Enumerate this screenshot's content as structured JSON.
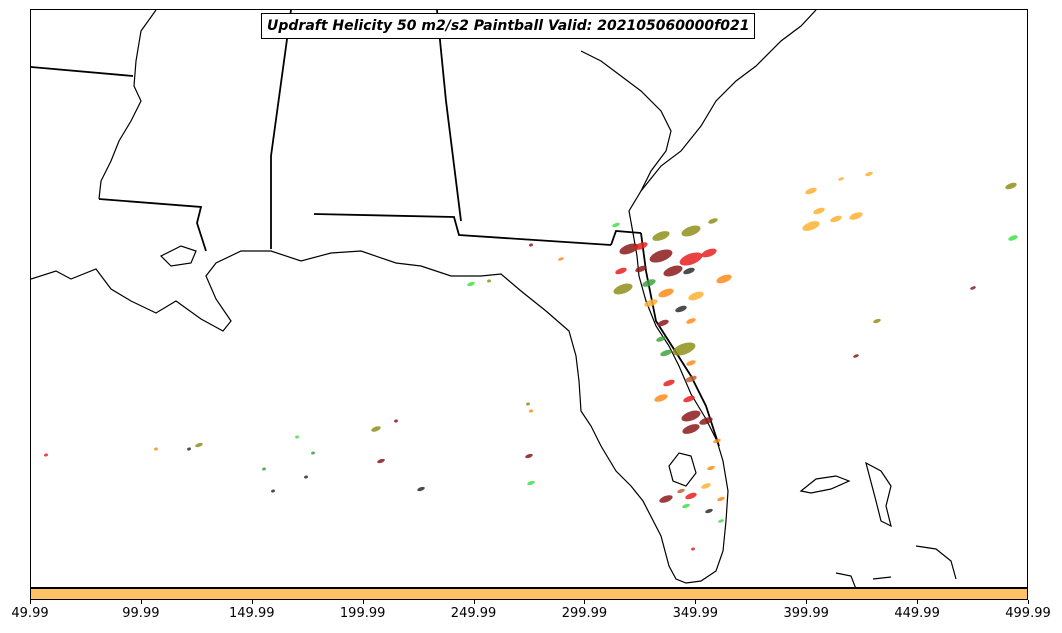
{
  "title": "Updraft Helicity 50 m2/s2 Paintball Valid: 202105060000f021",
  "colorbar": {
    "color": "#ffc266",
    "ticks": [
      "49.99",
      "99.99",
      "149.99",
      "199.99",
      "249.99",
      "299.99",
      "349.99",
      "399.99",
      "449.99",
      "499.99"
    ]
  },
  "paint_colors": [
    "#8b1a1a",
    "#e8201e",
    "#ff8c1a",
    "#ffb033",
    "#8f8f1a",
    "#2e2e2e",
    "#3fa23f",
    "#44e044",
    "#c06030"
  ],
  "icon": "paintball-blobs"
}
